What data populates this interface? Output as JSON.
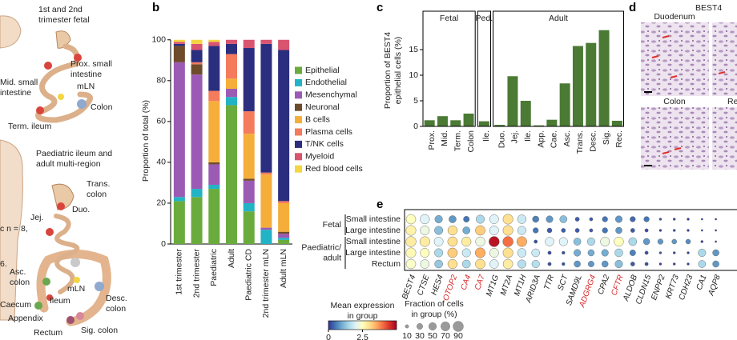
{
  "panel_labels": [
    "b",
    "c",
    "d",
    "e"
  ],
  "illustration": {
    "labels": [
      [
        "1st and 2nd",
        "trimester fetal"
      ],
      [
        "Mid. small",
        "intestine"
      ],
      [
        "Prox. small",
        "intestine"
      ],
      [
        "mLN"
      ],
      [
        "Colon"
      ],
      [
        "Term. ileum"
      ],
      [
        "Paediatric ileum and",
        "adult multi-region"
      ],
      [
        "Duo."
      ],
      [
        "Trans.",
        "colon"
      ],
      [
        "Jej."
      ],
      [
        "c n = 8,"
      ],
      [
        "6."
      ],
      [
        "Asc.",
        "colon"
      ],
      [
        "mLN"
      ],
      [
        "Desc.",
        "colon"
      ],
      [
        "Caecum"
      ],
      [
        "Ileum"
      ],
      [
        "Appendix"
      ],
      [
        "Rectum"
      ],
      [
        "Sig. colon"
      ]
    ]
  },
  "images": {
    "title": "BEST4",
    "labels": [
      "Duodenum",
      "Colon",
      "Re"
    ]
  },
  "chart_data": [
    {
      "type": "stacked_bar",
      "y_label": "Proportion of total (%)",
      "categories": [
        "1st trimester",
        "2nd trimester",
        "Paediatric",
        "Adult",
        "Paediatric CD",
        "2nd trimester mLN",
        "Adult mLN"
      ],
      "series": [
        {
          "name": "Epithelial",
          "color": "#6aab3e",
          "values": [
            21,
            23,
            27,
            68,
            16,
            0,
            2
          ]
        },
        {
          "name": "Endothelial",
          "color": "#22b3c6",
          "values": [
            2,
            4,
            2,
            4,
            4,
            7,
            1
          ]
        },
        {
          "name": "Mesenchymal",
          "color": "#9b5bb5",
          "values": [
            66,
            56,
            10,
            4,
            11,
            1,
            2
          ]
        },
        {
          "name": "Neuronal",
          "color": "#6e4b2a",
          "values": [
            8,
            5,
            1,
            0,
            1,
            0,
            1
          ]
        },
        {
          "name": "B cells",
          "color": "#f6ae3a",
          "values": [
            0,
            0,
            30,
            5,
            22,
            26,
            14
          ]
        },
        {
          "name": "Plasma cells",
          "color": "#f47b5c",
          "values": [
            0,
            1,
            5,
            12,
            11,
            1,
            1
          ]
        },
        {
          "name": "T/NK cells",
          "color": "#2b2e7f",
          "values": [
            1,
            6,
            22,
            5,
            31,
            63,
            74
          ]
        },
        {
          "name": "Myeloid",
          "color": "#d9546f",
          "values": [
            1,
            3,
            2,
            2,
            4,
            2,
            5
          ]
        },
        {
          "name": "Red blood cells",
          "color": "#f3d640",
          "values": [
            1,
            2,
            1,
            0,
            0,
            0,
            0
          ]
        }
      ],
      "ylim": [
        0,
        105
      ],
      "yticks": [
        0,
        20,
        40,
        60,
        80,
        100
      ]
    },
    {
      "type": "grouped_bar",
      "color": "#4b7a34",
      "y_label": [
        "Proportion of  BEST4",
        "epithelial cells (%)"
      ],
      "groups": [
        {
          "name": "Fetal",
          "categories": [
            "Prox.",
            "Mid.",
            "Term.",
            "Colon"
          ],
          "values": [
            1.2,
            2.0,
            1.2,
            2.5
          ]
        },
        {
          "name": "Ped.",
          "categories": [
            "Ile."
          ],
          "values": [
            1.0
          ]
        },
        {
          "name": "Adult",
          "categories": [
            "Duo.",
            "Jej.",
            "Ile.",
            "App.",
            "Cae.",
            "Asc.",
            "Trans.",
            "Desc.",
            "Sig.",
            "Rec."
          ],
          "values": [
            0.3,
            9.8,
            5.0,
            0.2,
            1.3,
            8.4,
            15.7,
            16.3,
            18.8,
            1.1
          ]
        }
      ],
      "ylim": [
        0,
        22.5
      ],
      "yticks": [
        0,
        5,
        10,
        15
      ]
    },
    {
      "type": "dotplot",
      "row_groups": [
        {
          "name": [
            "Fetal"
          ],
          "rows": [
            "Small intestine",
            "Large intestine"
          ]
        },
        {
          "name": [
            "Paediatric/",
            "adult"
          ],
          "rows": [
            "Small intestine",
            "Large intestine",
            "Rectum"
          ]
        }
      ],
      "genes": [
        {
          "name": "BEST4",
          "color": "#222"
        },
        {
          "name": "CTSE",
          "color": "#222"
        },
        {
          "name": "HES4",
          "color": "#222"
        },
        {
          "name": "OTOP2",
          "color": "#d62728"
        },
        {
          "name": "CA4",
          "color": "#d62728"
        },
        {
          "name": "CA7",
          "color": "#d62728"
        },
        {
          "name": "MT1G",
          "color": "#222"
        },
        {
          "name": "MT2A",
          "color": "#222"
        },
        {
          "name": "MT1H",
          "color": "#222"
        },
        {
          "name": "ARID3A",
          "color": "#222"
        },
        {
          "name": "TTR",
          "color": "#222"
        },
        {
          "name": "SCT",
          "color": "#222"
        },
        {
          "name": "SAMD9L",
          "color": "#222"
        },
        {
          "name": "ADGRG4",
          "color": "#d62728"
        },
        {
          "name": "CPA2",
          "color": "#222"
        },
        {
          "name": "CFTR",
          "color": "#d62728"
        },
        {
          "name": "ALDOB",
          "color": "#222"
        },
        {
          "name": "CLDN15",
          "color": "#222"
        },
        {
          "name": "ENPP2",
          "color": "#222"
        },
        {
          "name": "KRT73",
          "color": "#222"
        },
        {
          "name": "CDH23",
          "color": "#222"
        },
        {
          "name": "CA1",
          "color": "#222"
        },
        {
          "name": "AQP8",
          "color": "#222"
        }
      ],
      "expression": [
        [
          2.5,
          2.0,
          1.0,
          0.8,
          0.5,
          1.5,
          2.0,
          3.0,
          1.8,
          0.6,
          0.8,
          1.2,
          0.3,
          0.3,
          0.5,
          0.8,
          0.4,
          0.5,
          0.2,
          0.1,
          0.1,
          0.1,
          0.1
        ],
        [
          2.7,
          2.2,
          1.2,
          3.0,
          1.0,
          3.2,
          2.0,
          3.0,
          1.8,
          0.5,
          0.3,
          0.3,
          0.3,
          0.3,
          0.5,
          0.8,
          0.3,
          0.2,
          0.1,
          0.1,
          0.1,
          0.1,
          0.1
        ],
        [
          2.8,
          2.8,
          2.0,
          3.0,
          2.8,
          2.2,
          4.8,
          4.0,
          3.5,
          0.2,
          2.0,
          2.0,
          1.2,
          1.5,
          2.2,
          2.5,
          1.5,
          0.8,
          0.8,
          0.8,
          0.7,
          0.1,
          0.1
        ],
        [
          2.6,
          2.5,
          1.5,
          3.2,
          1.8,
          3.5,
          2.2,
          3.0,
          1.8,
          1.8,
          0.2,
          0.2,
          1.0,
          1.0,
          1.0,
          1.5,
          0.6,
          0.2,
          0.2,
          0.1,
          0.1,
          1.5,
          0.8
        ],
        [
          2.4,
          2.2,
          1.3,
          3.0,
          1.5,
          3.0,
          2.0,
          2.8,
          1.6,
          1.6,
          0.2,
          0.2,
          0.8,
          0.8,
          0.8,
          1.2,
          0.3,
          0.2,
          0.1,
          0.1,
          0.1,
          1.5,
          0.8
        ]
      ],
      "fraction": [
        [
          80,
          75,
          50,
          45,
          30,
          60,
          70,
          85,
          65,
          35,
          40,
          45,
          15,
          10,
          25,
          40,
          25,
          25,
          5,
          5,
          5,
          3,
          3
        ],
        [
          85,
          70,
          60,
          75,
          45,
          80,
          70,
          85,
          60,
          25,
          20,
          15,
          15,
          10,
          25,
          35,
          15,
          10,
          5,
          5,
          5,
          3,
          3
        ],
        [
          90,
          85,
          70,
          80,
          75,
          75,
          90,
          90,
          85,
          10,
          65,
          60,
          45,
          50,
          70,
          75,
          55,
          35,
          25,
          20,
          20,
          5,
          3
        ],
        [
          85,
          70,
          60,
          80,
          60,
          85,
          70,
          85,
          65,
          55,
          10,
          8,
          40,
          35,
          40,
          55,
          30,
          10,
          5,
          5,
          5,
          50,
          35
        ],
        [
          80,
          65,
          55,
          75,
          55,
          80,
          65,
          80,
          60,
          50,
          10,
          8,
          35,
          30,
          35,
          50,
          15,
          10,
          5,
          5,
          5,
          45,
          35
        ]
      ],
      "colorscale": [
        "#313695",
        "#4575b4",
        "#74add1",
        "#abd9e9",
        "#e0f3f8",
        "#ffffbf",
        "#fee090",
        "#fdae61",
        "#f46d43",
        "#d73027",
        "#a50026"
      ],
      "colorlim": [
        0,
        5
      ],
      "colorticks": [
        0,
        2.5
      ],
      "color_title": [
        "Mean expression",
        "in group"
      ],
      "size_title": [
        "Fraction of cells",
        "in group (%)"
      ],
      "size_legend": [
        10,
        30,
        50,
        70,
        90
      ]
    }
  ]
}
